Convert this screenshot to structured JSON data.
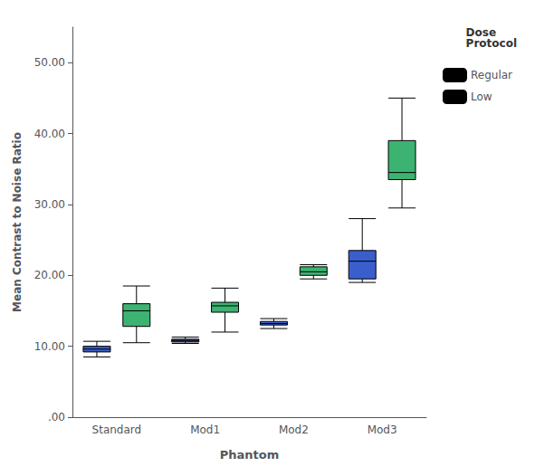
{
  "chart_data": {
    "type": "boxplot",
    "xlabel": "Phantom",
    "ylabel": "Mean Contrast to Noise Ratio",
    "categories": [
      "Standard",
      "Mod1",
      "Mod2",
      "Mod3"
    ],
    "ylim": [
      0,
      55
    ],
    "yticks": [
      {
        "value": 0,
        "label": ".00"
      },
      {
        "value": 10,
        "label": "10.00"
      },
      {
        "value": 20,
        "label": "20.00"
      },
      {
        "value": 30,
        "label": "30.00"
      },
      {
        "value": 40,
        "label": "40.00"
      },
      {
        "value": 50,
        "label": "50.00"
      }
    ],
    "grid": false,
    "legend": "right",
    "legend_title": "Dose\nProtocol",
    "series": [
      {
        "name": "Regular",
        "color": "#3a5fcd",
        "values": [
          [
            8.5,
            9.2,
            9.6,
            10.0,
            10.7
          ],
          [
            10.4,
            10.6,
            10.8,
            11.0,
            11.3
          ],
          [
            12.5,
            13.0,
            13.2,
            13.5,
            13.9
          ],
          [
            19.0,
            19.5,
            22.0,
            23.5,
            28.0
          ]
        ]
      },
      {
        "name": "Low",
        "color": "#3cb371",
        "values": [
          [
            10.5,
            12.8,
            15.0,
            16.0,
            18.5
          ],
          [
            12.0,
            14.8,
            15.7,
            16.2,
            18.2
          ],
          [
            19.5,
            20.0,
            20.5,
            21.2,
            21.5
          ],
          [
            29.5,
            33.5,
            34.5,
            39.0,
            45.0
          ]
        ]
      }
    ]
  }
}
